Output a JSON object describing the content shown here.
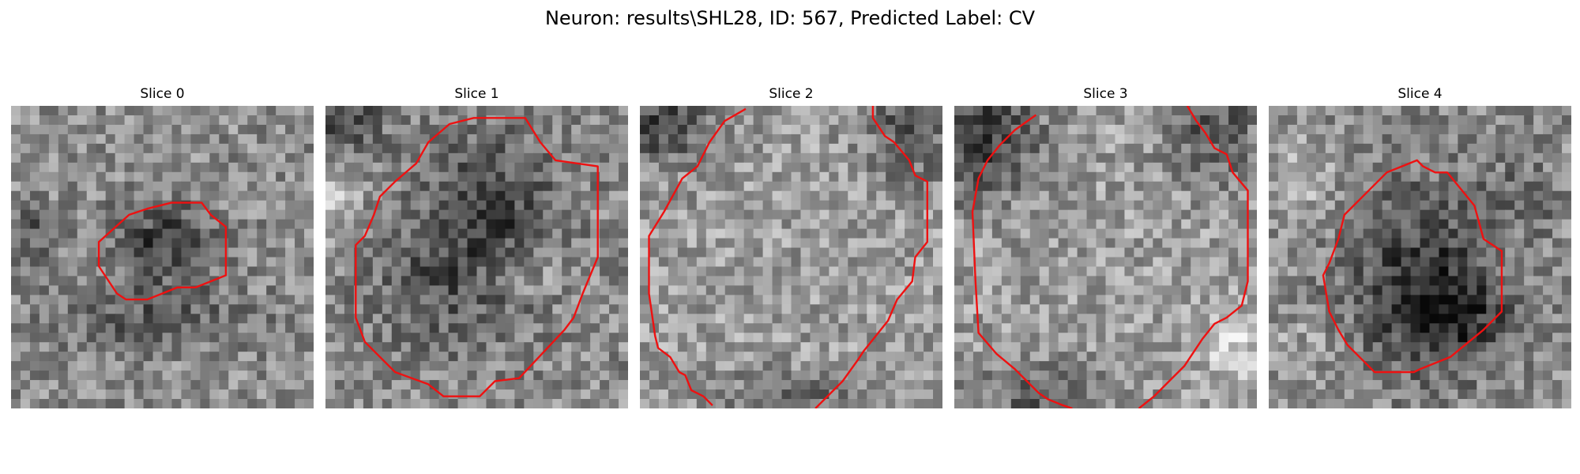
{
  "figure": {
    "title": "Neuron: results\\SHL28, ID: 567, Predicted Label: CV"
  },
  "colors": {
    "contour": "#ee1111",
    "background": "#ffffff"
  },
  "panels": [
    {
      "title": "Slice 0",
      "style": "mid",
      "seed": 11,
      "dark": [
        [
          0.5,
          0.45,
          0.16,
          0.13,
          0.3
        ],
        [
          0.08,
          0.42,
          0.08,
          0.08,
          0.2
        ],
        [
          0.45,
          0.7,
          0.35,
          0.1,
          0.18
        ]
      ],
      "light": [],
      "contour": [
        [
          0.29,
          0.45
        ],
        [
          0.39,
          0.36
        ],
        [
          0.45,
          0.34
        ],
        [
          0.53,
          0.32
        ],
        [
          0.63,
          0.32
        ],
        [
          0.66,
          0.36
        ],
        [
          0.71,
          0.4
        ],
        [
          0.71,
          0.56
        ],
        [
          0.66,
          0.58
        ],
        [
          0.61,
          0.6
        ],
        [
          0.55,
          0.6
        ],
        [
          0.5,
          0.62
        ],
        [
          0.45,
          0.64
        ],
        [
          0.38,
          0.64
        ],
        [
          0.35,
          0.62
        ],
        [
          0.29,
          0.53
        ]
      ],
      "closed": true
    },
    {
      "title": "Slice 1",
      "style": "mid",
      "seed": 23,
      "dark": [
        [
          0.55,
          0.35,
          0.22,
          0.25,
          0.28
        ],
        [
          0.4,
          0.6,
          0.3,
          0.22,
          0.18
        ],
        [
          0.05,
          0.05,
          0.15,
          0.1,
          0.25
        ]
      ],
      "light": [
        [
          0.65,
          0.55,
          0.16,
          0.1,
          0.2
        ],
        [
          0.03,
          0.3,
          0.08,
          0.15,
          0.2
        ]
      ],
      "contour": [
        [
          0.18,
          0.3
        ],
        [
          0.23,
          0.25
        ],
        [
          0.3,
          0.19
        ],
        [
          0.34,
          0.12
        ],
        [
          0.41,
          0.06
        ],
        [
          0.49,
          0.04
        ],
        [
          0.66,
          0.04
        ],
        [
          0.71,
          0.12
        ],
        [
          0.76,
          0.18
        ],
        [
          0.9,
          0.2
        ],
        [
          0.9,
          0.5
        ],
        [
          0.85,
          0.62
        ],
        [
          0.82,
          0.7
        ],
        [
          0.79,
          0.74
        ],
        [
          0.64,
          0.9
        ],
        [
          0.56,
          0.91
        ],
        [
          0.51,
          0.96
        ],
        [
          0.39,
          0.96
        ],
        [
          0.34,
          0.92
        ],
        [
          0.23,
          0.88
        ],
        [
          0.13,
          0.78
        ],
        [
          0.1,
          0.7
        ],
        [
          0.1,
          0.46
        ],
        [
          0.13,
          0.43
        ],
        [
          0.16,
          0.36
        ]
      ],
      "closed": true
    },
    {
      "title": "Slice 2",
      "style": "light",
      "seed": 37,
      "dark": [
        [
          0.05,
          0.05,
          0.2,
          0.15,
          0.35
        ],
        [
          0.9,
          0.05,
          0.15,
          0.2,
          0.3
        ],
        [
          0.5,
          0.98,
          0.3,
          0.1,
          0.2
        ]
      ],
      "light": [],
      "contour": [
        [
          0.35,
          0.01
        ],
        [
          0.28,
          0.05
        ],
        [
          0.23,
          0.12
        ],
        [
          0.19,
          0.2
        ],
        [
          0.14,
          0.24
        ],
        [
          0.08,
          0.35
        ],
        [
          0.03,
          0.43
        ],
        [
          0.03,
          0.62
        ],
        [
          0.05,
          0.76
        ],
        [
          0.06,
          0.8
        ],
        [
          0.1,
          0.83
        ],
        [
          0.13,
          0.88
        ],
        [
          0.15,
          0.89
        ],
        [
          0.17,
          0.94
        ],
        [
          0.19,
          0.95
        ],
        [
          0.21,
          0.96
        ],
        [
          0.24,
          0.99
        ]
      ],
      "contour2": [
        [
          0.58,
          1.0
        ],
        [
          0.61,
          0.97
        ],
        [
          0.64,
          0.94
        ],
        [
          0.67,
          0.91
        ],
        [
          0.72,
          0.84
        ],
        [
          0.74,
          0.81
        ],
        [
          0.82,
          0.71
        ],
        [
          0.85,
          0.64
        ],
        [
          0.9,
          0.58
        ],
        [
          0.91,
          0.5
        ],
        [
          0.95,
          0.45
        ],
        [
          0.95,
          0.25
        ],
        [
          0.91,
          0.23
        ],
        [
          0.89,
          0.18
        ],
        [
          0.84,
          0.12
        ],
        [
          0.81,
          0.1
        ],
        [
          0.77,
          0.04
        ],
        [
          0.77,
          0.0
        ]
      ],
      "closed": false
    },
    {
      "title": "Slice 3",
      "style": "light",
      "seed": 41,
      "dark": [
        [
          0.08,
          0.1,
          0.2,
          0.2,
          0.4
        ],
        [
          0.85,
          0.05,
          0.15,
          0.2,
          0.3
        ],
        [
          0.3,
          0.95,
          0.25,
          0.1,
          0.25
        ]
      ],
      "light": [
        [
          0.92,
          0.8,
          0.1,
          0.12,
          0.2
        ]
      ],
      "contour": [
        [
          0.27,
          0.03
        ],
        [
          0.2,
          0.08
        ],
        [
          0.15,
          0.13
        ],
        [
          0.11,
          0.18
        ],
        [
          0.08,
          0.24
        ],
        [
          0.06,
          0.35
        ],
        [
          0.07,
          0.58
        ],
        [
          0.08,
          0.75
        ],
        [
          0.14,
          0.82
        ],
        [
          0.2,
          0.87
        ],
        [
          0.24,
          0.91
        ],
        [
          0.28,
          0.95
        ],
        [
          0.31,
          0.97
        ],
        [
          0.36,
          0.99
        ],
        [
          0.39,
          1.0
        ]
      ],
      "contour2": [
        [
          0.61,
          1.0
        ],
        [
          0.66,
          0.96
        ],
        [
          0.71,
          0.91
        ],
        [
          0.76,
          0.86
        ],
        [
          0.82,
          0.77
        ],
        [
          0.86,
          0.72
        ],
        [
          0.9,
          0.7
        ],
        [
          0.95,
          0.66
        ],
        [
          0.97,
          0.58
        ],
        [
          0.97,
          0.28
        ],
        [
          0.92,
          0.22
        ],
        [
          0.9,
          0.16
        ],
        [
          0.86,
          0.14
        ],
        [
          0.83,
          0.09
        ],
        [
          0.8,
          0.05
        ],
        [
          0.77,
          0.0
        ]
      ],
      "closed": false
    },
    {
      "title": "Slice 4",
      "style": "mid",
      "seed": 53,
      "dark": [
        [
          0.5,
          0.55,
          0.25,
          0.3,
          0.3
        ],
        [
          0.6,
          0.7,
          0.18,
          0.15,
          0.3
        ],
        [
          0.85,
          0.3,
          0.12,
          0.1,
          0.15
        ]
      ],
      "light": [
        [
          0.12,
          0.25,
          0.12,
          0.15,
          0.15
        ],
        [
          0.1,
          0.8,
          0.15,
          0.1,
          0.1
        ]
      ],
      "contour": [
        [
          0.25,
          0.36
        ],
        [
          0.36,
          0.25
        ],
        [
          0.39,
          0.22
        ],
        [
          0.49,
          0.18
        ],
        [
          0.51,
          0.2
        ],
        [
          0.55,
          0.22
        ],
        [
          0.59,
          0.22
        ],
        [
          0.68,
          0.33
        ],
        [
          0.71,
          0.44
        ],
        [
          0.77,
          0.48
        ],
        [
          0.77,
          0.68
        ],
        [
          0.71,
          0.74
        ],
        [
          0.6,
          0.83
        ],
        [
          0.5,
          0.87
        ],
        [
          0.48,
          0.88
        ],
        [
          0.35,
          0.88
        ],
        [
          0.31,
          0.84
        ],
        [
          0.26,
          0.79
        ],
        [
          0.23,
          0.74
        ],
        [
          0.2,
          0.68
        ],
        [
          0.18,
          0.56
        ],
        [
          0.2,
          0.52
        ],
        [
          0.23,
          0.44
        ]
      ],
      "closed": true
    }
  ]
}
